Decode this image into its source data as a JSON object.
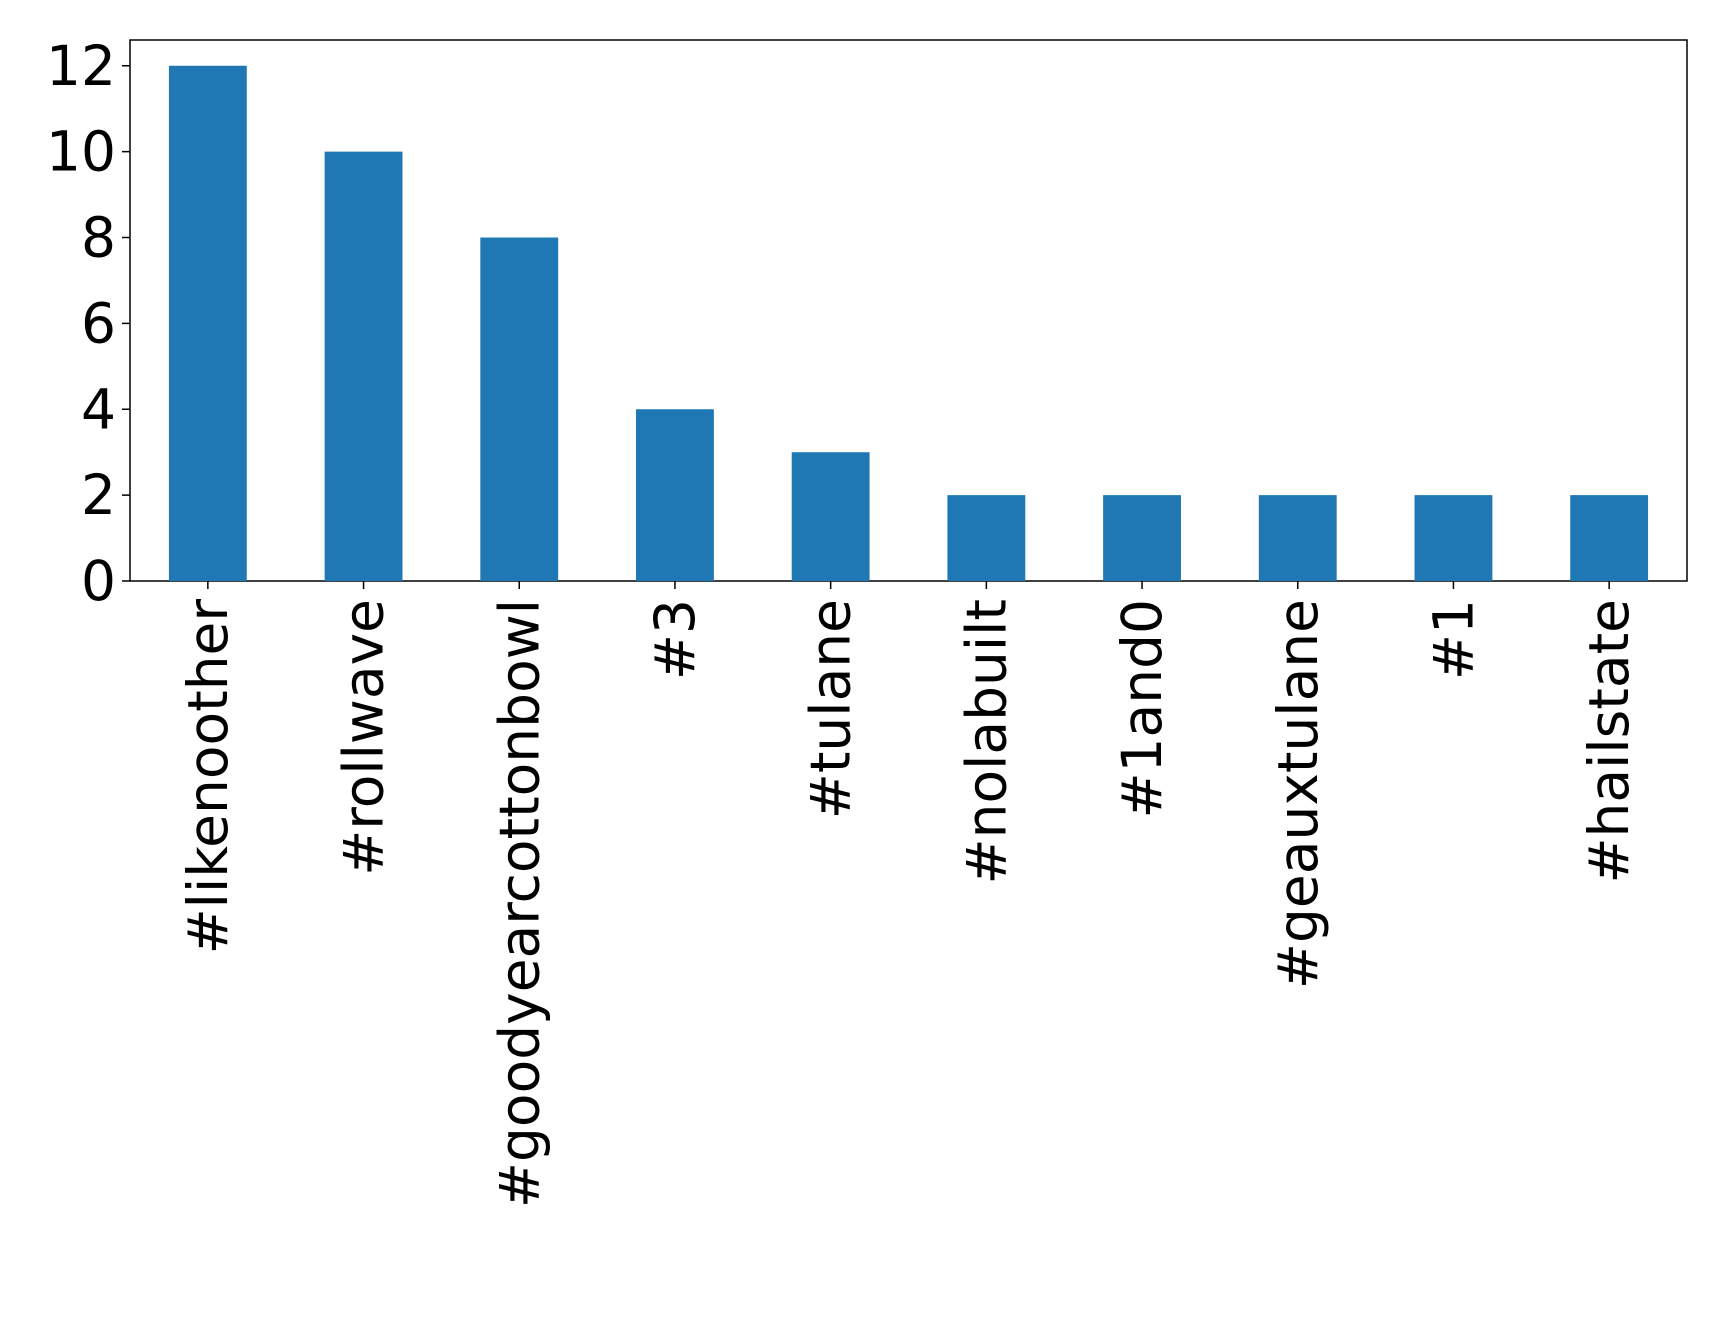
{
  "chart_data": {
    "type": "bar",
    "title": "",
    "xlabel": "",
    "ylabel": "",
    "categories": [
      "#likenoother",
      "#rollwave",
      "#goodyearcottonbowl",
      "#3",
      "#tulane",
      "#nolabuilt",
      "#1and0",
      "#geauxtulane",
      "#1",
      "#hailstate"
    ],
    "values": [
      12,
      10,
      8,
      4,
      3,
      2,
      2,
      2,
      2,
      2
    ],
    "ylim": [
      0,
      12.6
    ],
    "yticks": [
      0,
      2,
      4,
      6,
      8,
      10,
      12
    ],
    "x_tick_rotation": "vertical",
    "grid": false,
    "legend": "none",
    "bar_color": "#1f77b4"
  }
}
